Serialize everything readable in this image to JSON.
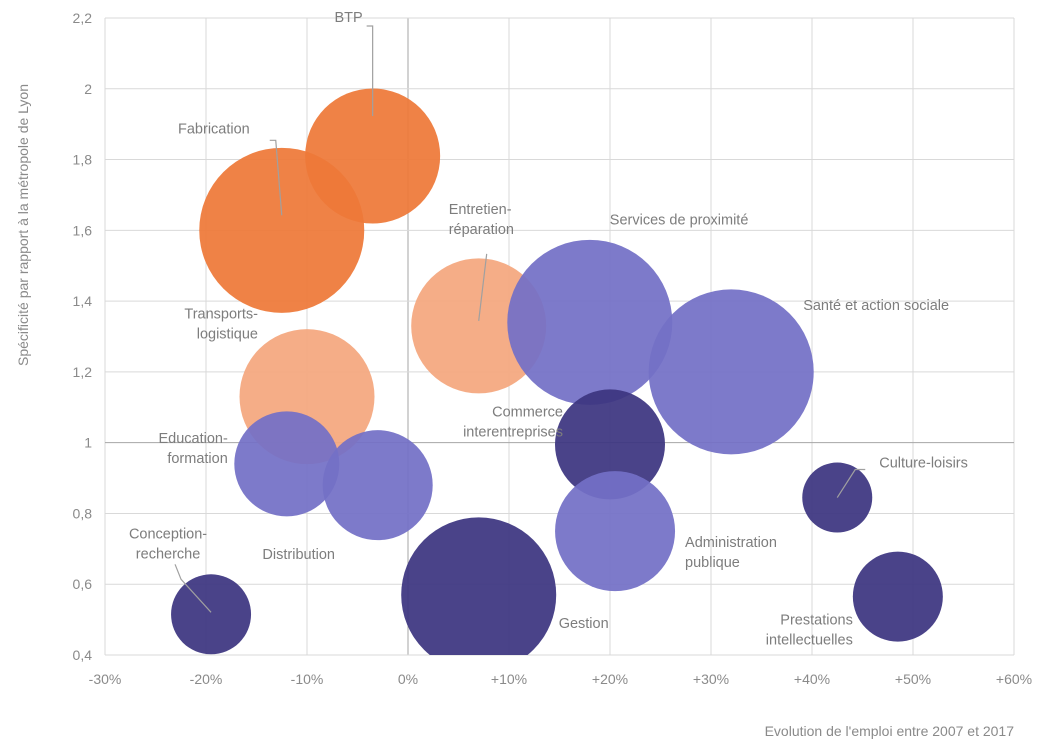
{
  "chart_data": {
    "type": "bubble",
    "xlabel": "Evolution de l'emploi entre 2007 et 2017",
    "ylabel": "Spécificité par rapport à la métropole de Lyon",
    "xlim": [
      -30,
      60
    ],
    "ylim": [
      0.4,
      2.2
    ],
    "x_ticks": [
      {
        "value": -30,
        "label": "-30%"
      },
      {
        "value": -20,
        "label": "-20%"
      },
      {
        "value": -10,
        "label": "-10%"
      },
      {
        "value": 0,
        "label": "0%"
      },
      {
        "value": 10,
        "label": "+10%"
      },
      {
        "value": 20,
        "label": "+20%"
      },
      {
        "value": 30,
        "label": "+30%"
      },
      {
        "value": 40,
        "label": "+40%"
      },
      {
        "value": 50,
        "label": "+50%"
      },
      {
        "value": 60,
        "label": "+60%"
      }
    ],
    "y_ticks": [
      {
        "value": 0.4,
        "label": "0,4"
      },
      {
        "value": 0.6,
        "label": "0,6"
      },
      {
        "value": 0.8,
        "label": "0,8"
      },
      {
        "value": 1.0,
        "label": "1"
      },
      {
        "value": 1.2,
        "label": "1,2"
      },
      {
        "value": 1.4,
        "label": "1,4"
      },
      {
        "value": 1.6,
        "label": "1,6"
      },
      {
        "value": 1.8,
        "label": "1,8"
      },
      {
        "value": 2.0,
        "label": "2"
      },
      {
        "value": 2.2,
        "label": "2,2"
      }
    ],
    "grid": true,
    "colors": {
      "orange": "#ee7838",
      "light_orange": "#f4a77e",
      "periwinkle": "#7370c6",
      "navy": "#3c3580"
    },
    "points": [
      {
        "name": "BTP",
        "x": -3.5,
        "y": 1.81,
        "size": 13.5,
        "color": "#ee7838",
        "label_lines": [
          "BTP"
        ],
        "label_anchor": "end",
        "label_offset": [
          -10,
          -134
        ],
        "leader": [
          [
            0,
            -40
          ],
          [
            0,
            -130
          ],
          [
            -6,
            -130
          ]
        ]
      },
      {
        "name": "Fabrication",
        "x": -12.5,
        "y": 1.6,
        "size": 16.5,
        "color": "#ee7838",
        "label_lines": [
          "Fabrication"
        ],
        "label_anchor": "end",
        "label_offset": [
          -32,
          -97
        ],
        "leader": [
          [
            0,
            -15
          ],
          [
            -6,
            -90
          ],
          [
            -12,
            -90
          ]
        ]
      },
      {
        "name": "Entretien-réparation",
        "x": 7.0,
        "y": 1.33,
        "size": 13.5,
        "color": "#f4a77e",
        "label_lines": [
          "Entretien-",
          "réparation"
        ],
        "label_anchor": "start",
        "label_offset": [
          -30,
          -112
        ],
        "leader": [
          [
            0,
            -5
          ],
          [
            8,
            -72
          ]
        ]
      },
      {
        "name": "Services de proximité",
        "x": 18.0,
        "y": 1.34,
        "size": 16.5,
        "color": "#7370c6",
        "label_lines": [
          "Services de proximité"
        ],
        "label_anchor": "start",
        "label_offset": [
          20,
          -98
        ],
        "leader": null
      },
      {
        "name": "Santé et action sociale",
        "x": 32.0,
        "y": 1.2,
        "size": 16.5,
        "color": "#7370c6",
        "label_lines": [
          "Santé et action sociale"
        ],
        "label_anchor": "start",
        "label_offset": [
          72,
          -62
        ],
        "leader": null
      },
      {
        "name": "Transports-logistique",
        "x": -10.0,
        "y": 1.13,
        "size": 13.5,
        "color": "#f4a77e",
        "label_lines": [
          "Transports-",
          "logistique"
        ],
        "label_anchor": "end",
        "label_offset": [
          -49,
          -78
        ],
        "leader": null
      },
      {
        "name": "Commerce interentreprises",
        "x": 20.0,
        "y": 0.995,
        "size": 11.0,
        "color": "#3c3580",
        "label_lines": [
          "Commerce",
          "interentreprises"
        ],
        "label_anchor": "end",
        "label_offset": [
          -47,
          -28
        ],
        "leader": null
      },
      {
        "name": "Education-formation",
        "x": -12.0,
        "y": 0.94,
        "size": 10.5,
        "color": "#7370c6",
        "label_lines": [
          "Education-",
          "formation"
        ],
        "label_anchor": "end",
        "label_offset": [
          -59,
          -21
        ],
        "leader": null
      },
      {
        "name": "Distribution",
        "x": -3.0,
        "y": 0.88,
        "size": 11.0,
        "color": "#7370c6",
        "label_lines": [
          "Distribution"
        ],
        "label_anchor": "middle",
        "label_offset": [
          -79,
          74
        ],
        "leader": null
      },
      {
        "name": "Culture-loisirs",
        "x": 42.5,
        "y": 0.845,
        "size": 7.0,
        "color": "#3c3580",
        "label_lines": [
          "Culture-loisirs"
        ],
        "label_anchor": "start",
        "label_offset": [
          42,
          -30
        ],
        "leader": [
          [
            0,
            0
          ],
          [
            18,
            -28
          ],
          [
            28,
            -28
          ]
        ]
      },
      {
        "name": "Administration publique",
        "x": 20.5,
        "y": 0.75,
        "size": 12.0,
        "color": "#7370c6",
        "label_lines": [
          "Administration",
          "publique"
        ],
        "label_anchor": "start",
        "label_offset": [
          70,
          16
        ],
        "leader": null
      },
      {
        "name": "Gestion",
        "x": 7.0,
        "y": 0.57,
        "size": 15.5,
        "color": "#3c3580",
        "label_lines": [
          "Gestion"
        ],
        "label_anchor": "start",
        "label_offset": [
          80,
          33
        ],
        "leader": null
      },
      {
        "name": "Prestations intellectuelles",
        "x": 48.5,
        "y": 0.565,
        "size": 9.0,
        "color": "#3c3580",
        "label_lines": [
          "Prestations",
          "intellectuelles"
        ],
        "label_anchor": "end",
        "label_offset": [
          -45,
          28
        ],
        "leader": null
      },
      {
        "name": "Conception-recherche",
        "x": -19.5,
        "y": 0.515,
        "size": 8.0,
        "color": "#3c3580",
        "label_lines": [
          "Conception-",
          "recherche"
        ],
        "label_anchor": "middle",
        "label_offset": [
          -43,
          -76
        ],
        "leader": [
          [
            0,
            -2
          ],
          [
            -30,
            -35
          ],
          [
            -36,
            -50
          ]
        ]
      }
    ]
  }
}
